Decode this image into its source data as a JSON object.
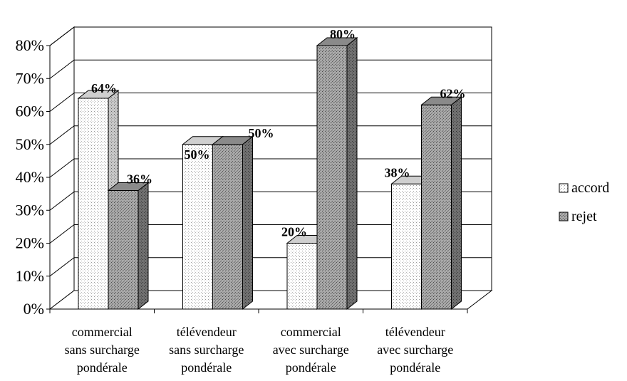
{
  "chart_data": {
    "type": "bar",
    "categories": [
      [
        "commercial",
        "sans surcharge",
        "pondérale"
      ],
      [
        "télévendeur",
        "sans surcharge",
        "pondérale"
      ],
      [
        "commercial",
        "avec surcharge",
        "pondérale"
      ],
      [
        "télévendeur",
        "avec surcharge",
        "pondérale"
      ]
    ],
    "series": [
      {
        "name": "accord",
        "values": [
          64,
          50,
          20,
          38
        ],
        "labels": [
          "64%",
          "50%",
          "20%",
          "38%"
        ],
        "color": "#fffbe8",
        "pattern": "dots-light"
      },
      {
        "name": "rejet",
        "values": [
          36,
          50,
          80,
          62
        ],
        "labels": [
          "36%",
          "50%",
          "80%",
          "62%"
        ],
        "color": "#8c8c8c",
        "pattern": "dots-dark"
      }
    ],
    "ylim": [
      0,
      80
    ],
    "yticks": [
      "0%",
      "10%",
      "20%",
      "30%",
      "40%",
      "50%",
      "60%",
      "70%",
      "80%"
    ],
    "grid": true,
    "legend": "right",
    "three_d": true
  }
}
